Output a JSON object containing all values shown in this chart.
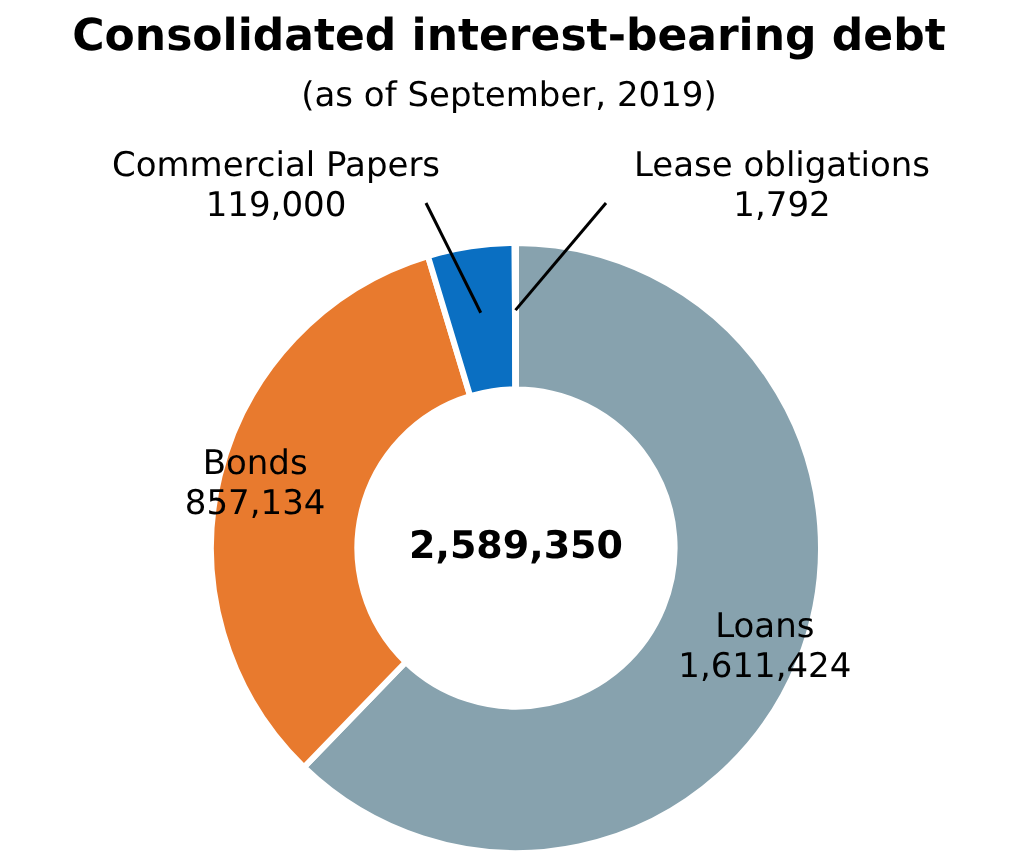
{
  "chart_data": {
    "type": "donut",
    "title": "Consolidated interest-bearing debt",
    "subtitle": "(as of September, 2019)",
    "categories": [
      "Loans",
      "Bonds",
      "Commercial Papers",
      "Lease obligations"
    ],
    "values": [
      1611424,
      857134,
      119000,
      1792
    ],
    "colors": [
      "#87a2ae",
      "#e87a2e",
      "#0a6fc2",
      "#3c3c3c"
    ],
    "value_labels": [
      "1,611,424",
      "857,134",
      "119,000",
      "1,792"
    ],
    "annotations": [
      "2,589,350"
    ],
    "legend": false
  }
}
